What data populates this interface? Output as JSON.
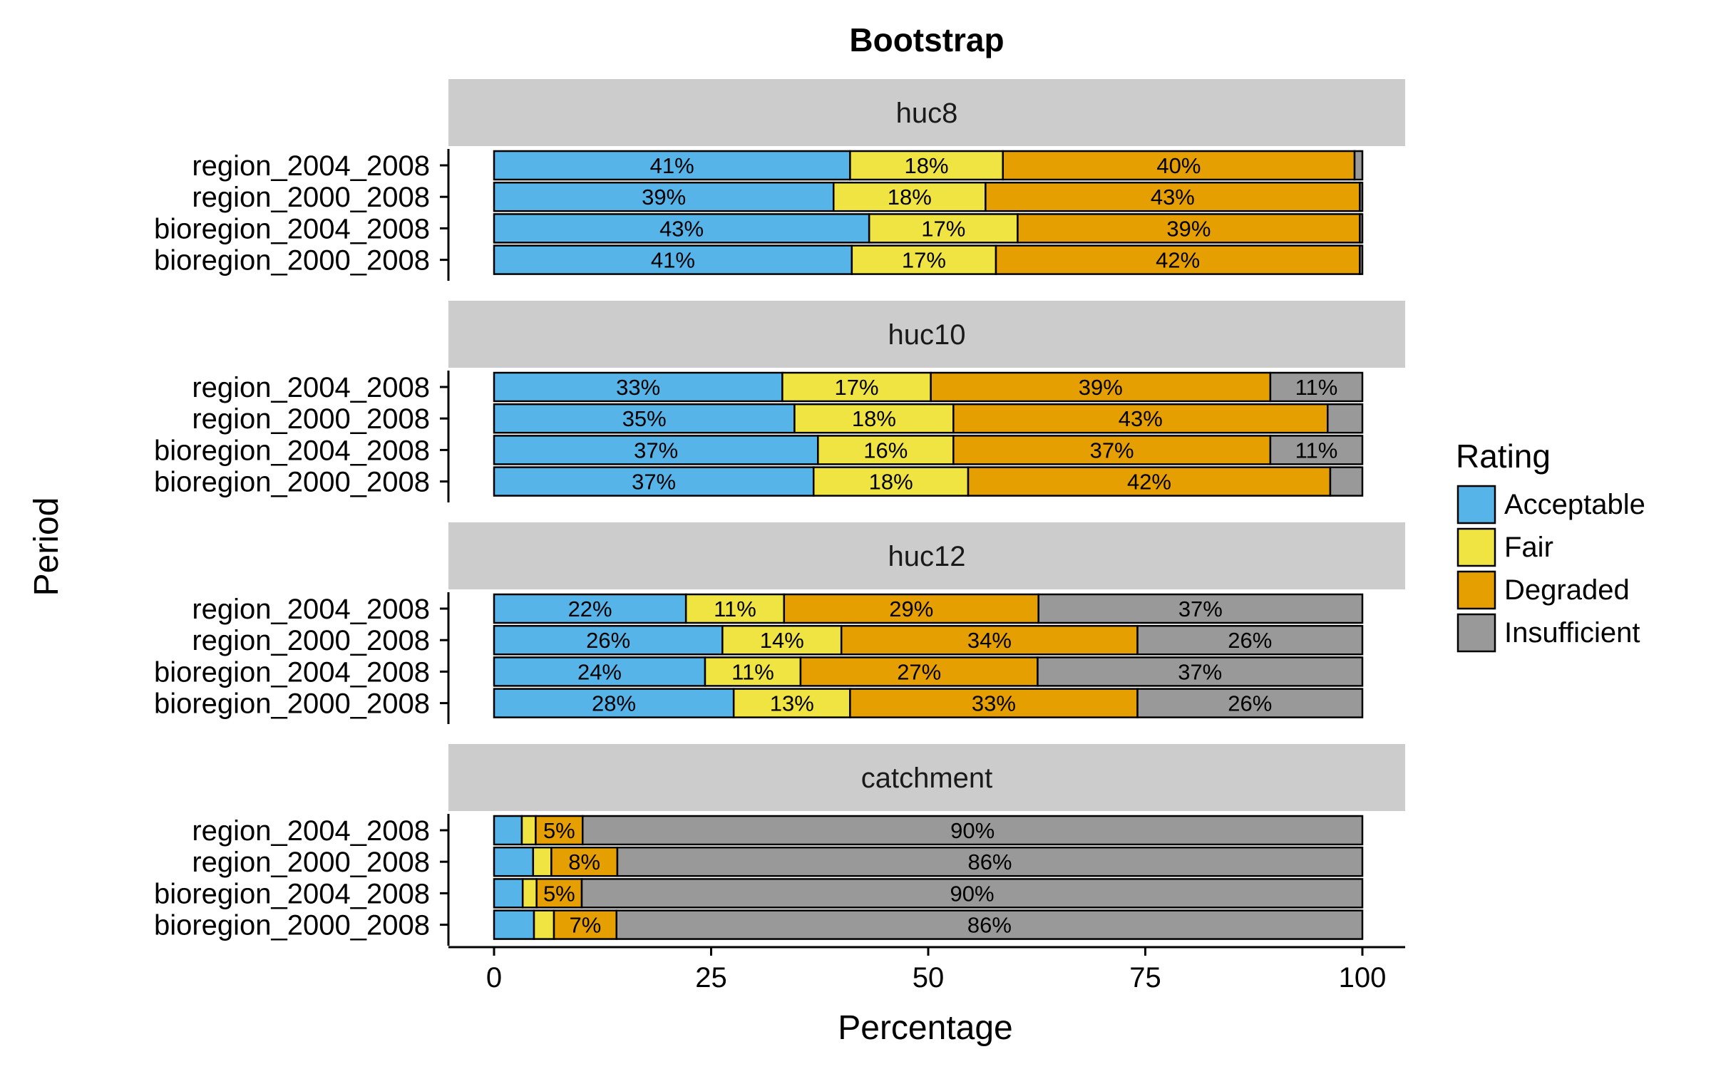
{
  "chart_data": {
    "type": "bar",
    "orientation": "horizontal",
    "stacked": true,
    "title": "Bootstrap",
    "xlabel": "Percentage",
    "ylabel": "Period",
    "xlim": [
      0,
      100
    ],
    "xticks": [
      0,
      25,
      50,
      75,
      100
    ],
    "xtick_labels": [
      "0",
      "25",
      "50",
      "75",
      "100"
    ],
    "grid": false,
    "legend": {
      "title": "Rating",
      "placement": "right",
      "entries": [
        "Acceptable",
        "Fair",
        "Degraded",
        "Insufficient"
      ]
    },
    "colors": {
      "Acceptable": "#56B4E9",
      "Fair": "#F0E442",
      "Degraded": "#E69F00",
      "Insufficient": "#999999",
      "strip": "#cccccc"
    },
    "panels": [
      {
        "name": "huc8",
        "rows": [
          {
            "period": "region_2004_2008",
            "values": [
              41,
              17.6,
              40.5,
              0.9
            ],
            "labels": [
              "41%",
              "18%",
              "40%",
              ""
            ]
          },
          {
            "period": "region_2000_2008",
            "values": [
              39.1,
              17.5,
              43.1,
              0.3
            ],
            "labels": [
              "39%",
              "18%",
              "43%",
              ""
            ]
          },
          {
            "period": "bioregion_2004_2008",
            "values": [
              43.2,
              17.1,
              39.4,
              0.3
            ],
            "labels": [
              "43%",
              "17%",
              "39%",
              ""
            ]
          },
          {
            "period": "bioregion_2000_2008",
            "values": [
              41.2,
              16.6,
              41.9,
              0.3
            ],
            "labels": [
              "41%",
              "17%",
              "42%",
              ""
            ]
          }
        ]
      },
      {
        "name": "huc10",
        "rows": [
          {
            "period": "region_2004_2008",
            "values": [
              33.2,
              17.1,
              39.1,
              10.6
            ],
            "labels": [
              "33%",
              "17%",
              "39%",
              "11%"
            ]
          },
          {
            "period": "region_2000_2008",
            "values": [
              34.6,
              18.3,
              43.1,
              4
            ],
            "labels": [
              "35%",
              "18%",
              "43%",
              ""
            ]
          },
          {
            "period": "bioregion_2004_2008",
            "values": [
              37.3,
              15.6,
              36.5,
              10.6
            ],
            "labels": [
              "37%",
              "16%",
              "37%",
              "11%"
            ]
          },
          {
            "period": "bioregion_2000_2008",
            "values": [
              36.8,
              17.8,
              41.7,
              3.7
            ],
            "labels": [
              "37%",
              "18%",
              "42%",
              ""
            ]
          }
        ]
      },
      {
        "name": "huc12",
        "rows": [
          {
            "period": "region_2004_2008",
            "values": [
              22.1,
              11.3,
              29.3,
              37.3
            ],
            "labels": [
              "22%",
              "11%",
              "29%",
              "37%"
            ]
          },
          {
            "period": "region_2000_2008",
            "values": [
              26.3,
              13.7,
              34.1,
              25.9
            ],
            "labels": [
              "26%",
              "14%",
              "34%",
              "26%"
            ]
          },
          {
            "period": "bioregion_2004_2008",
            "values": [
              24.3,
              11,
              27.3,
              37.4
            ],
            "labels": [
              "24%",
              "11%",
              "27%",
              "37%"
            ]
          },
          {
            "period": "bioregion_2000_2008",
            "values": [
              27.6,
              13.4,
              33.1,
              25.9
            ],
            "labels": [
              "28%",
              "13%",
              "33%",
              "26%"
            ]
          }
        ]
      },
      {
        "name": "catchment",
        "rows": [
          {
            "period": "region_2004_2008",
            "values": [
              3.2,
              1.6,
              5.4,
              89.8
            ],
            "labels": [
              "",
              "",
              "5%",
              "90%"
            ]
          },
          {
            "period": "region_2000_2008",
            "values": [
              4.5,
              2.1,
              7.6,
              85.8
            ],
            "labels": [
              "",
              "",
              "8%",
              "86%"
            ]
          },
          {
            "period": "bioregion_2004_2008",
            "values": [
              3.3,
              1.6,
              5.2,
              89.9
            ],
            "labels": [
              "",
              "",
              "5%",
              "90%"
            ]
          },
          {
            "period": "bioregion_2000_2008",
            "values": [
              4.6,
              2.3,
              7.2,
              85.9
            ],
            "labels": [
              "",
              "",
              "7%",
              "86%"
            ]
          }
        ]
      }
    ]
  }
}
